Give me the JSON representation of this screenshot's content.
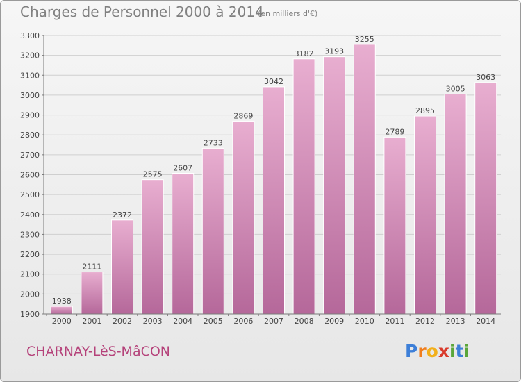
{
  "header": {
    "title": "Charges de Personnel 2000 à 2014",
    "subtitle": "(en milliers d'€)"
  },
  "footer": {
    "commune": "CHARNAY-LèS-MâCON"
  },
  "logo": {
    "letters": [
      "P",
      "r",
      "o",
      "x",
      "i",
      "t",
      "i"
    ],
    "colors": [
      "#3d7fd8",
      "#f07e1e",
      "#f2b01b",
      "#d93a2b",
      "#5aa63a",
      "#3d7fd8",
      "#5aa63a"
    ]
  },
  "colors": {
    "bar_top": "#e8aed0",
    "bar_bottom": "#b5689a",
    "grid": "#cfcfcf",
    "axis": "#7a7a7a",
    "label": "#444444"
  },
  "chart_data": {
    "type": "bar",
    "title": "Charges de Personnel 2000 à 2014",
    "subtitle": "(en milliers d'€)",
    "xlabel": "",
    "ylabel": "",
    "categories": [
      "2000",
      "2001",
      "2002",
      "2003",
      "2004",
      "2005",
      "2006",
      "2007",
      "2008",
      "2009",
      "2010",
      "2011",
      "2012",
      "2013",
      "2014"
    ],
    "values": [
      1938,
      2111,
      2372,
      2575,
      2607,
      2733,
      2869,
      3042,
      3182,
      3193,
      3255,
      2789,
      2895,
      3005,
      3063
    ],
    "ylim": [
      1900,
      3300
    ],
    "yticks": [
      1900,
      2000,
      2100,
      2200,
      2300,
      2400,
      2500,
      2600,
      2700,
      2800,
      2900,
      3000,
      3100,
      3200,
      3300
    ],
    "grid": true,
    "legend": "none"
  }
}
